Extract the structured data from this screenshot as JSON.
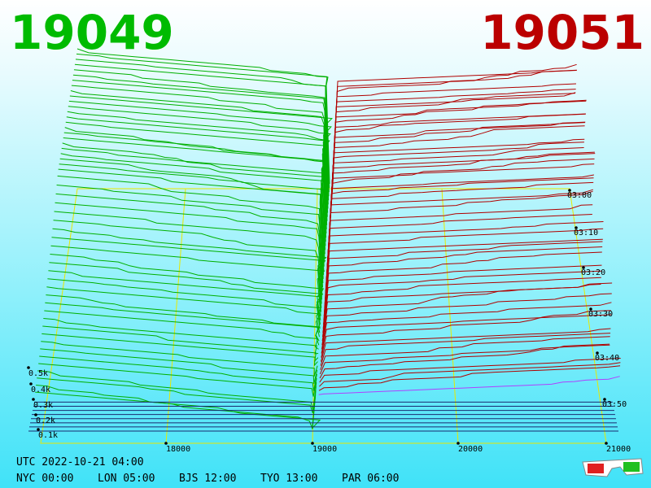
{
  "header": {
    "bid": "19049",
    "ask": "19051"
  },
  "depth_axis": {
    "ticks": [
      "0.1k",
      "0.2k",
      "0.3k",
      "0.4k",
      "0.5k"
    ]
  },
  "price_axis": {
    "ticks": [
      "18000",
      "19000",
      "20000",
      "21000"
    ]
  },
  "time_axis": {
    "ticks": [
      "03:00",
      "03:10",
      "03:20",
      "03:30",
      "03:40",
      "03:50"
    ]
  },
  "footer": {
    "utc": "UTC 2022-10-21 04:00",
    "zones": [
      "NYC 00:00",
      "LON 05:00",
      "BJS 12:00",
      "TYO 13:00",
      "PAR 06:00"
    ]
  }
}
